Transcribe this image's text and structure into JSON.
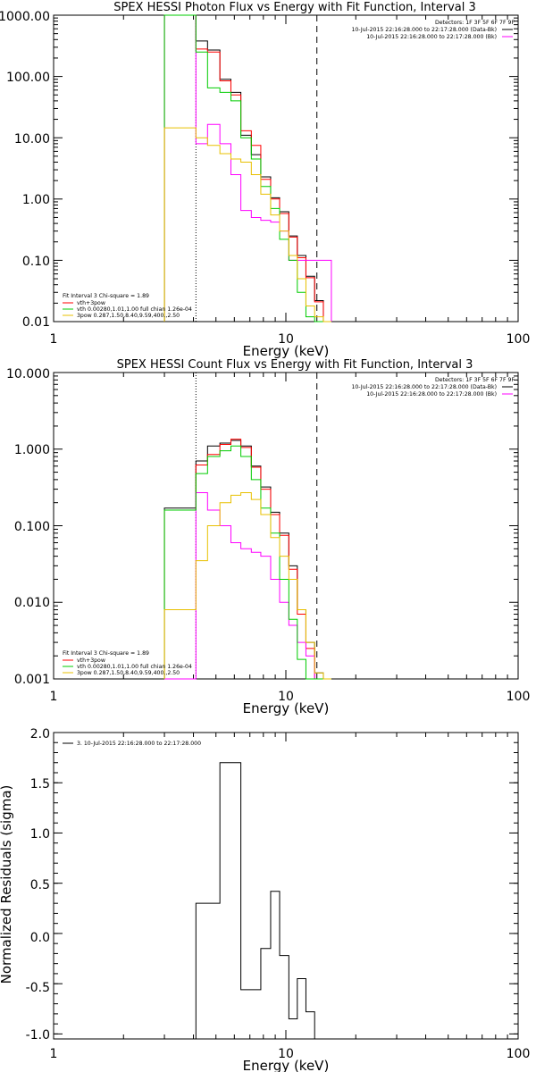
{
  "chart_data": [
    {
      "type": "line",
      "title": "SPEX HESSI Photon Flux vs Energy with Fit Function, Interval 3",
      "xlabel": "Energy (keV)",
      "ylabel": "",
      "xscale": "log",
      "yscale": "log",
      "xlim": [
        1,
        100
      ],
      "ylim": [
        0.01,
        1000
      ],
      "xticks": [
        "1",
        "10",
        "100"
      ],
      "yticks": [
        "0.01",
        "0.10",
        "1.00",
        "10.00",
        "100.00",
        "1000.00"
      ],
      "info": [
        "Detectors: 1F 3F 5F 6F 7F 9F",
        "10-Jul-2015 22:16:28.000 to 22:17:28.000 (Data-Bk)",
        "10-Jul-2015 22:16:28.000 to 22:17:28.000 (Bk)"
      ],
      "legend": [
        "Fit Interval 3   Chi-square = 1.89",
        "vth+3pow",
        "vth 0.00280,1.01,1.00  full chian 1.26e-04",
        "3pow 0.287,1.50,8.40,9.59,400.,2.50"
      ],
      "vlines": [
        {
          "x": 4.1,
          "style": "dotted"
        },
        {
          "x": 13.6,
          "style": "dashed"
        }
      ],
      "bin_edges": [
        3.0,
        3.5,
        4.1,
        4.6,
        5.2,
        5.8,
        6.4,
        7.1,
        7.8,
        8.6,
        9.4,
        10.3,
        11.2,
        12.2,
        13.3,
        14.5,
        15.7
      ],
      "series": [
        {
          "color": "#000000",
          "values": [
            1000,
            1000,
            380,
            270,
            90,
            55,
            11,
            5.3,
            2.3,
            1.05,
            0.62,
            0.25,
            0.12,
            0.055,
            0.022,
            0.01
          ]
        },
        {
          "color": "#ff0000",
          "values": [
            1000,
            1000,
            280,
            250,
            85,
            50,
            13,
            7.5,
            2.1,
            1.0,
            0.58,
            0.24,
            0.11,
            0.052,
            0.021,
            0.01
          ]
        },
        {
          "color": "#ff00ff",
          "values": [
            1000,
            1000,
            8.0,
            16.5,
            8.0,
            2.5,
            0.65,
            0.5,
            0.45,
            0.42,
            0.3,
            0.1,
            0.1,
            0.1,
            0.1,
            0.1
          ]
        },
        {
          "color": "#00cc00",
          "values": [
            1000,
            1000,
            250,
            65,
            55,
            40,
            10,
            4.5,
            1.6,
            0.7,
            0.22,
            0.1,
            0.03,
            0.012,
            0.01,
            0.01
          ]
        },
        {
          "color": "#e8c000",
          "values": [
            14.5,
            14.5,
            10,
            7.5,
            5.5,
            4.5,
            4.0,
            2.5,
            1.2,
            0.55,
            0.3,
            0.12,
            0.05,
            0.018,
            0.012,
            0.01
          ]
        }
      ]
    },
    {
      "type": "line",
      "title": "SPEX HESSI Count Flux vs Energy with Fit Function, Interval 3",
      "xlabel": "Energy (keV)",
      "ylabel": "",
      "xscale": "log",
      "yscale": "log",
      "xlim": [
        1,
        100
      ],
      "ylim": [
        0.001,
        10
      ],
      "xticks": [
        "1",
        "10",
        "100"
      ],
      "yticks": [
        "0.001",
        "0.010",
        "0.100",
        "1.000",
        "10.000"
      ],
      "info": [
        "Detectors: 1F 3F 5F 6F 7F 9F",
        "10-Jul-2015 22:16:28.000 to 22:17:28.000 (Data-Bk)",
        "10-Jul-2015 22:16:28.000 to 22:17:28.000 (Bk)"
      ],
      "legend": [
        "Fit Interval 3   Chi-square = 1.89",
        "vth+3pow",
        "vth 0.00280,1.01,1.00  full chian 1.26e-04",
        "3pow 0.287,1.50,8.40,9.59,400.,2.50"
      ],
      "vlines": [
        {
          "x": 4.1,
          "style": "dotted"
        },
        {
          "x": 13.6,
          "style": "dashed"
        }
      ],
      "bin_edges": [
        3.0,
        3.5,
        4.1,
        4.6,
        5.2,
        5.8,
        6.4,
        7.1,
        7.8,
        8.6,
        9.4,
        10.3,
        11.2,
        12.2,
        13.3,
        14.5,
        15.7
      ],
      "series": [
        {
          "color": "#000000",
          "values": [
            0.17,
            0.17,
            0.7,
            1.1,
            1.2,
            1.3,
            1.1,
            0.6,
            0.32,
            0.15,
            0.08,
            0.03,
            0.008,
            0.003,
            0.0012,
            0.001
          ]
        },
        {
          "color": "#ff0000",
          "values": [
            0.16,
            0.16,
            0.62,
            0.85,
            1.15,
            1.35,
            1.05,
            0.58,
            0.3,
            0.14,
            0.075,
            0.027,
            0.007,
            0.0025,
            0.001,
            0.001
          ]
        },
        {
          "color": "#ff00ff",
          "values": [
            0.001,
            0.001,
            0.27,
            0.16,
            0.1,
            0.06,
            0.05,
            0.045,
            0.04,
            0.02,
            0.01,
            0.005,
            0.003,
            0.002,
            0.001,
            0.001
          ]
        },
        {
          "color": "#00cc00",
          "values": [
            0.16,
            0.16,
            0.48,
            0.8,
            0.95,
            1.1,
            0.8,
            0.4,
            0.17,
            0.08,
            0.02,
            0.006,
            0.0018,
            0.001,
            0.001,
            0.001
          ]
        },
        {
          "color": "#e8c000",
          "values": [
            0.008,
            0.008,
            0.035,
            0.1,
            0.2,
            0.25,
            0.27,
            0.22,
            0.14,
            0.07,
            0.04,
            0.02,
            0.008,
            0.003,
            0.0012,
            0.001
          ]
        }
      ]
    },
    {
      "type": "line",
      "title": "",
      "xlabel": "Energy (keV)",
      "ylabel": "Normalized Residuals (sigma)",
      "xscale": "log",
      "yscale": "linear",
      "xlim": [
        1,
        100
      ],
      "ylim": [
        -1.05,
        2.0
      ],
      "xticks": [
        "1",
        "10",
        "100"
      ],
      "yticks": [
        "-1.0",
        "-0.5",
        "0.0",
        "0.5",
        "1.0",
        "1.5",
        "2.0"
      ],
      "legend": [
        "3. 10-Jul-2015 22:16:28.000 to 22:17:28.000"
      ],
      "bin_edges": [
        4.1,
        4.6,
        5.2,
        5.8,
        6.4,
        7.1,
        7.8,
        8.6,
        9.4,
        10.3,
        11.2,
        12.2,
        13.3,
        14.5
      ],
      "series": [
        {
          "color": "#000000",
          "values": [
            0.3,
            0.3,
            1.7,
            1.7,
            -0.56,
            -0.56,
            -0.15,
            0.42,
            -0.22,
            -0.85,
            -0.45,
            -0.78,
            -1.05
          ]
        }
      ]
    }
  ]
}
